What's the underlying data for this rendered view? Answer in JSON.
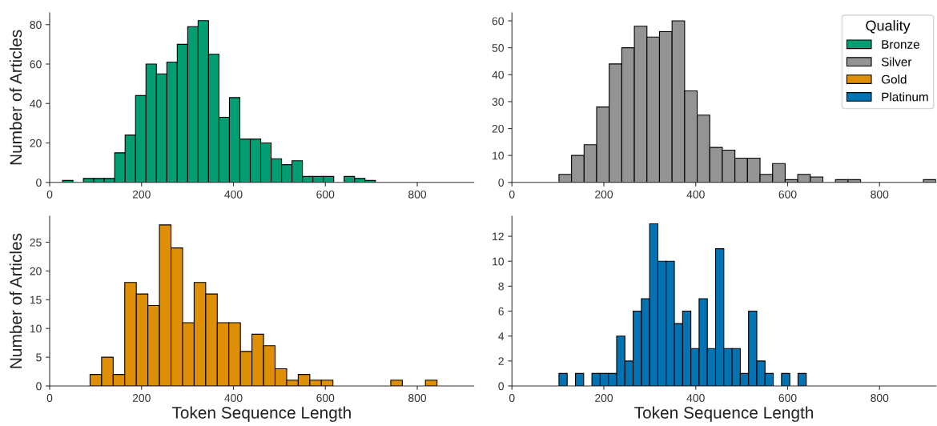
{
  "chart_data": [
    {
      "type": "histogram",
      "ylabel": "Number of Articles",
      "xlim": [
        0,
        923
      ],
      "ylim": [
        0,
        86
      ],
      "xticks": [
        0,
        200,
        400,
        600,
        800
      ],
      "yticks": [
        0,
        20,
        40,
        60,
        80
      ],
      "bins": [
        28,
        50.7,
        73.4,
        96.1,
        118.8,
        141.5,
        164.2,
        186.9,
        209.6,
        232.3,
        255,
        277.7,
        300.4,
        323.1,
        345.8,
        368.5,
        391.2,
        413.9,
        436.6,
        459.3,
        482,
        504.7,
        527.4,
        550.1,
        572.8,
        595.5,
        618.2,
        640.9,
        663.6,
        686.3,
        709
      ],
      "series": [
        {
          "name": "Bronze",
          "color": "#029e73",
          "values": [
            1,
            0,
            2,
            2,
            2,
            15,
            24,
            44,
            60,
            55,
            61,
            70,
            79,
            82,
            65,
            33,
            43,
            22,
            22,
            20,
            12,
            9,
            11,
            3,
            3,
            3,
            0,
            3,
            2,
            1
          ]
        }
      ]
    },
    {
      "type": "histogram",
      "legend": "top right",
      "legend_title": "Quality",
      "xlim": [
        0,
        923
      ],
      "ylim": [
        0,
        63
      ],
      "xticks": [
        0,
        200,
        400,
        600,
        800
      ],
      "yticks": [
        0,
        10,
        20,
        30,
        40,
        50,
        60
      ],
      "bins": [
        102.3,
        129.65,
        157,
        184.35,
        211.7,
        239.05,
        266.4,
        293.75,
        321.1,
        348.45,
        375.8,
        403.15,
        430.5,
        457.85,
        485.2,
        512.55,
        539.9,
        567.25,
        594.6,
        621.95,
        649.3,
        676.65,
        704,
        731.35,
        758.7,
        786.05,
        813.4,
        840.75,
        868.1,
        895.45,
        922.8
      ],
      "series": [
        {
          "name": "Silver",
          "color": "#949494",
          "values": [
            3,
            10,
            14,
            28,
            44,
            50,
            58,
            54,
            56,
            60,
            34,
            25,
            13,
            12,
            9,
            9,
            3,
            7,
            1,
            3,
            2,
            0,
            1,
            1,
            0,
            0,
            0,
            0,
            0,
            1
          ]
        }
      ]
    },
    {
      "type": "histogram",
      "xlabel": "Token Sequence Length",
      "ylabel": "Number of Articles",
      "xlim": [
        0,
        923
      ],
      "ylim": [
        0,
        29.5
      ],
      "xticks": [
        0,
        200,
        400,
        600,
        800
      ],
      "yticks": [
        0,
        5,
        10,
        15,
        20,
        25
      ],
      "bins": [
        87.9,
        113.07,
        138.24,
        163.41,
        188.58,
        213.75,
        238.92,
        264.09,
        289.26,
        314.43,
        339.6,
        364.77,
        389.94,
        415.11,
        440.28,
        465.45,
        490.62,
        515.79,
        540.96,
        566.13,
        591.3,
        616.47,
        641.64,
        666.81,
        691.98,
        717.15,
        742.32,
        767.49,
        792.66,
        817.83,
        843
      ],
      "series": [
        {
          "name": "Gold",
          "color": "#de8f05",
          "values": [
            2,
            5,
            2,
            18,
            16,
            14,
            28,
            24,
            11,
            18,
            16,
            11,
            11,
            6,
            9,
            7,
            3,
            1,
            2,
            1,
            1,
            0,
            0,
            0,
            0,
            0,
            1,
            0,
            0,
            1
          ]
        }
      ]
    },
    {
      "type": "histogram",
      "xlabel": "Token Sequence Length",
      "xlim": [
        0,
        923
      ],
      "ylim": [
        0,
        13.6
      ],
      "xticks": [
        0,
        200,
        400,
        600,
        800
      ],
      "yticks": [
        0,
        2,
        4,
        6,
        8,
        10,
        12
      ],
      "bins": [
        102.3,
        120.24,
        138.18,
        156.12,
        174.06,
        192,
        209.94,
        227.88,
        245.82,
        263.76,
        281.7,
        299.64,
        317.58,
        335.52,
        353.46,
        371.4,
        389.34,
        407.28,
        425.22,
        443.16,
        461.1,
        479.04,
        496.98,
        514.92,
        532.86,
        550.8,
        568.74,
        586.68,
        604.62,
        622.56,
        640.5
      ],
      "series": [
        {
          "name": "Platinum",
          "color": "#0173b2",
          "values": [
            1,
            0,
            1,
            0,
            1,
            1,
            1,
            4,
            2,
            6,
            7,
            13,
            10,
            10,
            5,
            6,
            3,
            7,
            3,
            11,
            3,
            3,
            1,
            6,
            2,
            1,
            0,
            1,
            0,
            1
          ]
        }
      ]
    }
  ]
}
